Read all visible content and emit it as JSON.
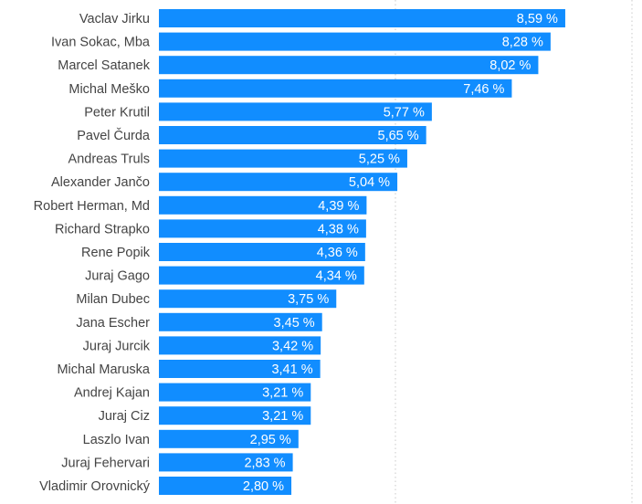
{
  "chart_data": {
    "type": "bar",
    "orientation": "horizontal",
    "categories": [
      "Vaclav Jirku",
      "Ivan Sokac, Mba",
      "Marcel Satanek",
      "Michal Meško",
      "Peter Krutil",
      "Pavel Čurda",
      "Andreas Truls",
      "Alexander Jančo",
      "Robert Herman, Md",
      "Richard Strapko",
      "Rene Popik",
      "Juraj Gago",
      "Milan Dubec",
      "Jana Escher",
      "Juraj Jurcik",
      "Michal Maruska",
      "Andrej Kajan",
      "Juraj Ciz",
      "Laszlo Ivan",
      "Juraj Fehervari",
      "Vladimir Orovnický"
    ],
    "values": [
      8.59,
      8.28,
      8.02,
      7.46,
      5.77,
      5.65,
      5.25,
      5.04,
      4.39,
      4.38,
      4.36,
      4.34,
      3.75,
      3.45,
      3.42,
      3.41,
      3.21,
      3.21,
      2.95,
      2.83,
      2.8
    ],
    "value_labels": [
      "8,59 %",
      "8,28 %",
      "8,02 %",
      "7,46 %",
      "5,77 %",
      "5,65 %",
      "5,25 %",
      "5,04 %",
      "4,39 %",
      "4,38 %",
      "4,36 %",
      "4,34 %",
      "3,75 %",
      "3,45 %",
      "3,42 %",
      "3,41 %",
      "3,21 %",
      "3,21 %",
      "2,95 %",
      "2,83 %",
      "2,80 %"
    ],
    "xlim": [
      0,
      12.5
    ],
    "grid": true,
    "bar_color": "#118dff",
    "title": "",
    "xlabel": "",
    "ylabel": ""
  }
}
